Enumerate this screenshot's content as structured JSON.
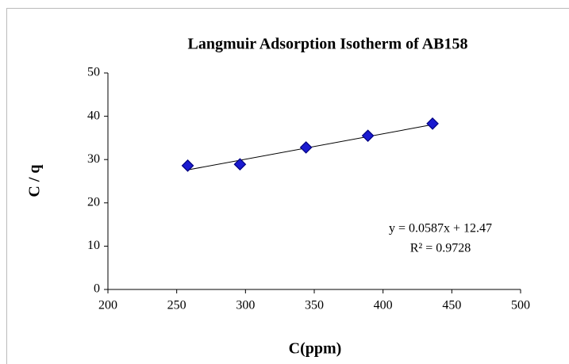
{
  "chart_data": {
    "type": "scatter",
    "title": "Langmuir Adsorption Isotherm of AB158",
    "x_label": "C(ppm)",
    "y_label": "C / q",
    "series": [
      {
        "name": "AB158",
        "color": "#1a1ad0",
        "x": [
          258,
          296,
          344,
          389,
          436
        ],
        "values": [
          28.6,
          28.9,
          32.8,
          35.5,
          38.3
        ]
      }
    ],
    "xlim": [
      200,
      500
    ],
    "xticks": [
      200,
      250,
      300,
      350,
      400,
      450,
      500
    ],
    "ylim": [
      0,
      50
    ],
    "yticks": [
      0,
      10,
      20,
      30,
      40,
      50
    ],
    "grid": false,
    "trendline": {
      "slope": 0.0587,
      "intercept": 12.47,
      "label": "y = 0.0587x + 12.47",
      "r2_label": "R² = 0.9728"
    }
  }
}
